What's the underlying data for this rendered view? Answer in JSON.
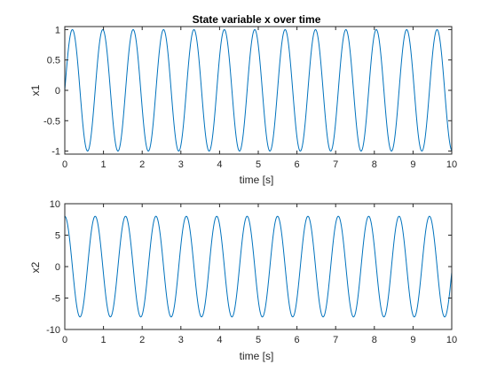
{
  "chart_data": [
    {
      "type": "line",
      "title": "State variable x over time",
      "xlabel": "time [s]",
      "ylabel": "x1",
      "xlim": [
        0,
        10
      ],
      "ylim": [
        -1.05,
        1.05
      ],
      "xticks": [
        "0",
        "1",
        "2",
        "3",
        "4",
        "5",
        "6",
        "7",
        "8",
        "9",
        "10"
      ],
      "yticks": [
        "-1",
        "-0.5",
        "0",
        "0.5",
        "1"
      ],
      "yticks_values": [
        -1,
        -0.5,
        0,
        0.5,
        1
      ],
      "grid": false,
      "series": [
        {
          "color": "#0072BD",
          "function": "sin",
          "amplitude": 1,
          "angular_frequency": 8,
          "phase": 0,
          "x_start": 0,
          "x_end": 10
        }
      ]
    },
    {
      "type": "line",
      "title": "",
      "xlabel": "time [s]",
      "ylabel": "x2",
      "xlim": [
        0,
        10
      ],
      "ylim": [
        -10,
        10
      ],
      "xticks": [
        "0",
        "1",
        "2",
        "3",
        "4",
        "5",
        "6",
        "7",
        "8",
        "9",
        "10"
      ],
      "yticks": [
        "-10",
        "-5",
        "0",
        "5",
        "10"
      ],
      "yticks_values": [
        -10,
        -5,
        0,
        5,
        10
      ],
      "grid": false,
      "series": [
        {
          "color": "#0072BD",
          "function": "cos",
          "amplitude": 8,
          "angular_frequency": 8,
          "phase": 0,
          "x_start": 0,
          "x_end": 10
        }
      ]
    }
  ]
}
